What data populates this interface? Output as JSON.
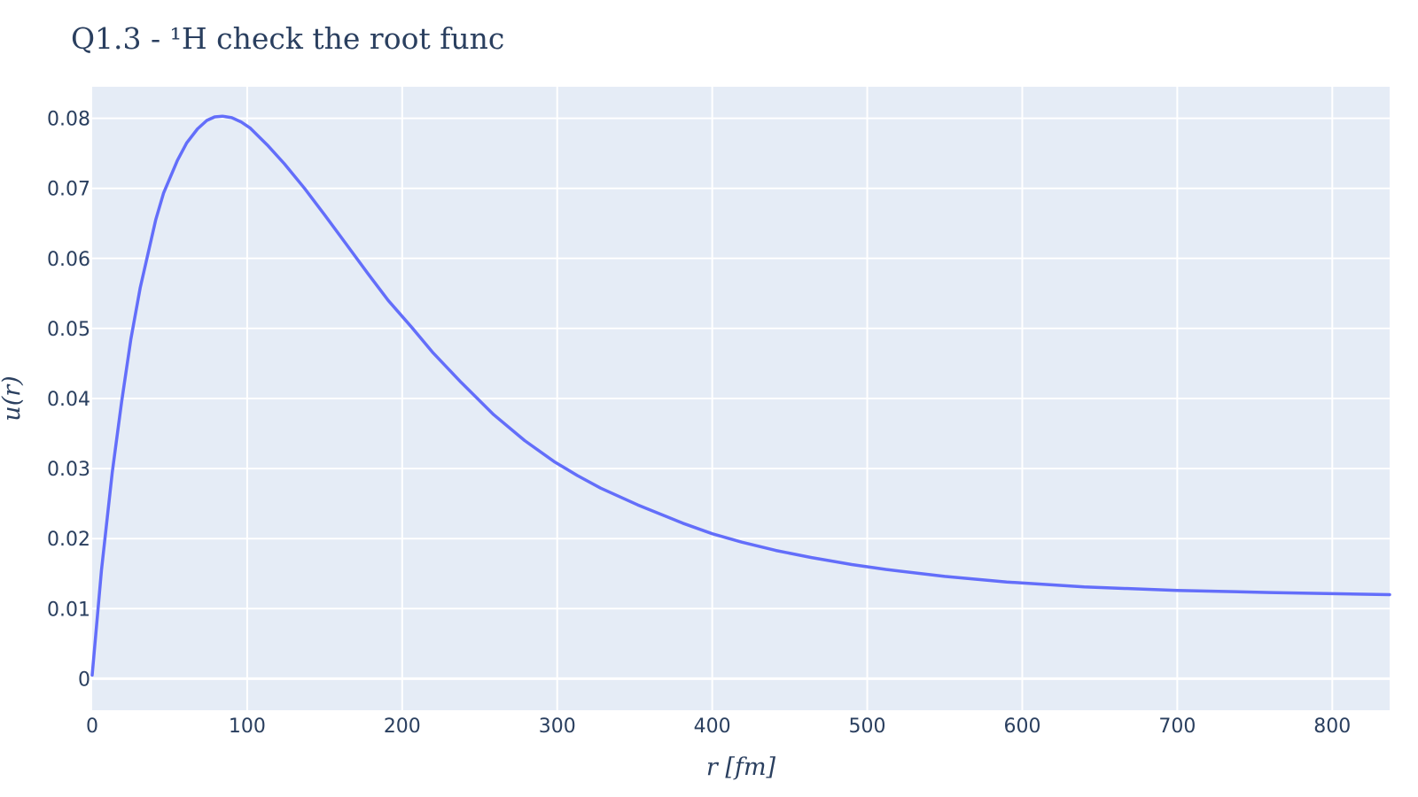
{
  "chart_data": {
    "type": "line",
    "title": "Q1.3 - ¹H check the root func",
    "xlabel": "r [fm]",
    "ylabel": "u(r)",
    "xlim": [
      0,
      837
    ],
    "ylim": [
      -0.0045,
      0.0845
    ],
    "xticks": [
      0,
      100,
      200,
      300,
      400,
      500,
      600,
      700,
      800
    ],
    "xtick_labels": [
      "0",
      "100",
      "200",
      "300",
      "400",
      "500",
      "600",
      "700",
      "800"
    ],
    "yticks": [
      0,
      0.01,
      0.02,
      0.03,
      0.04,
      0.05,
      0.06,
      0.07,
      0.08
    ],
    "ytick_labels": [
      "0",
      "0.01",
      "0.02",
      "0.03",
      "0.04",
      "0.05",
      "0.06",
      "0.07",
      "0.08"
    ],
    "grid": true,
    "colors": {
      "plot_bg": "#e5ecf6",
      "grid": "#ffffff",
      "line": "#636efa",
      "text": "#2a3f5f"
    },
    "series": [
      {
        "x": [
          0,
          6,
          13,
          19,
          25,
          31,
          41,
          46,
          55,
          61,
          68,
          74,
          79,
          84,
          90,
          96,
          102,
          113,
          124,
          137,
          150,
          164,
          178,
          191,
          206,
          220,
          238,
          259,
          279,
          298,
          313,
          328,
          352,
          381,
          400,
          419,
          441,
          464,
          490,
          512,
          550,
          590,
          640,
          700,
          760,
          837
        ],
        "y": [
          0.0005,
          0.0155,
          0.0295,
          0.0395,
          0.0485,
          0.0558,
          0.0655,
          0.0693,
          0.074,
          0.0765,
          0.0785,
          0.0797,
          0.0802,
          0.0803,
          0.0801,
          0.0795,
          0.0786,
          0.0762,
          0.0735,
          0.07,
          0.0662,
          0.062,
          0.0578,
          0.054,
          0.0502,
          0.0465,
          0.0423,
          0.0377,
          0.034,
          0.031,
          0.029,
          0.0272,
          0.0248,
          0.0222,
          0.0207,
          0.0195,
          0.0183,
          0.0173,
          0.0163,
          0.0156,
          0.0146,
          0.0138,
          0.0131,
          0.0126,
          0.0123,
          0.012
        ]
      }
    ]
  }
}
